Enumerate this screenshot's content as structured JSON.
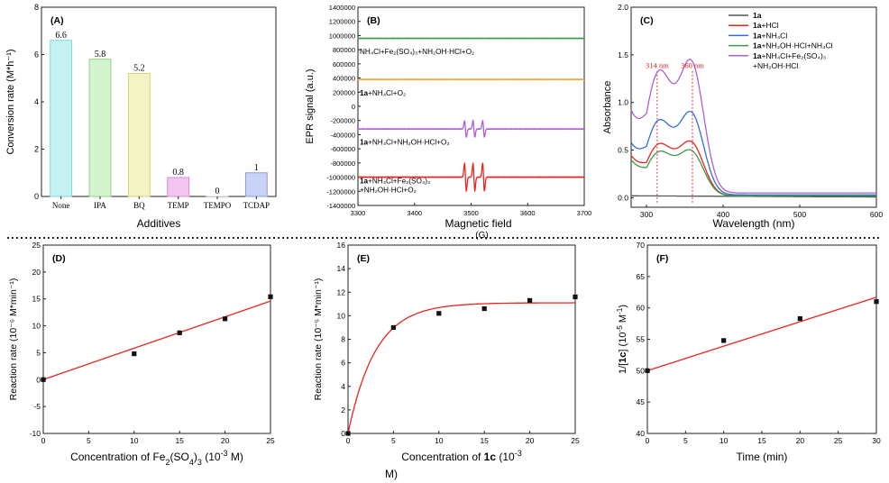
{
  "colors": {
    "black": "#111111",
    "gray": "#555555",
    "red": "#e8251f",
    "blue": "#2f6fd6",
    "green": "#3a9a4a",
    "purple": "#b05fd6",
    "orange": "#f5a340",
    "dashed_red": "#e03030"
  },
  "divider": "dotted",
  "chart_data": [
    {
      "id": "A",
      "panel_label": "(A)",
      "type": "bar",
      "categories": [
        "None",
        "IPA",
        "BQ",
        "TEMP",
        "TEMPO",
        "TCDAP"
      ],
      "values": [
        6.6,
        5.8,
        5.2,
        0.8,
        0,
        1
      ],
      "value_labels": [
        "6.6",
        "5.8",
        "5.2",
        "0.8",
        "0",
        "1"
      ],
      "bar_colors": [
        "#c5f3f3",
        "#d3f5cd",
        "#f4f3c3",
        "#f3c6f0",
        "#f4f4f4",
        "#c9d3f6"
      ],
      "bar_edges": [
        "#7fd7d7",
        "#8fd680",
        "#d8d27a",
        "#d88ad3",
        "#cccccc",
        "#8a9bd8"
      ],
      "xlabel": "Additives",
      "ylabel": "Conversion rate (M*h⁻¹)",
      "ylim": [
        0,
        8
      ],
      "yticks": [
        0,
        2,
        4,
        6,
        8
      ],
      "ytick_labels": [
        "0",
        "2",
        "4",
        "6",
        "8"
      ],
      "grid": false
    },
    {
      "id": "B",
      "panel_label": "(B)",
      "type": "line",
      "xlabel": "Magnetic field",
      "xlabel_extra": "(G)",
      "ylabel": "EPR signal (a.u.)",
      "xlim": [
        3300,
        3700
      ],
      "ylim": [
        -1400000,
        1400000
      ],
      "xticks": [
        3300,
        3400,
        3500,
        3600,
        3700
      ],
      "xtick_labels": [
        "3300",
        "3400",
        "3500",
        "3600",
        "3700"
      ],
      "yticks": [
        -1400000,
        -1200000,
        -1000000,
        -800000,
        -600000,
        -400000,
        -200000,
        0,
        200000,
        400000,
        600000,
        800000,
        1000000,
        1200000,
        1400000
      ],
      "ytick_labels": [
        "-1400000",
        "-1200000",
        "-1000000",
        "-800000",
        "-600000",
        "-400000",
        "-200000",
        "0",
        "200000",
        "400000",
        "600000",
        "800000",
        "1000000",
        "1200000",
        "1400000"
      ],
      "series": [
        {
          "baseline": 960000,
          "color": "#3a9a4a",
          "peaks": []
        },
        {
          "baseline": 380000,
          "color": "#f5a340",
          "peaks": []
        },
        {
          "baseline": -320000,
          "color": "#b05fd6",
          "peaks": [
            3490,
            3505,
            3522
          ],
          "amplitude": 120000
        },
        {
          "baseline": -1000000,
          "color": "#e8251f",
          "peaks": [
            3490,
            3505,
            3522
          ],
          "amplitude": 200000
        }
      ],
      "annotations": [
        {
          "lines": [
            "NH₄Cl+Fe₂(SO₄)₃+NH₂OH·HCl+O₂"
          ],
          "bold_prefix": "",
          "x": 3300,
          "y": 740000
        },
        {
          "lines": [
            "+NH₄Cl+O₂"
          ],
          "bold_prefix": "1a",
          "x": 3300,
          "y": 150000
        },
        {
          "lines": [
            "+NH₄Cl+NH₂OH·HCl+O₂"
          ],
          "bold_prefix": "1a",
          "x": 3300,
          "y": -540000
        },
        {
          "lines": [
            "+NH₄Cl+Fe₂(SO₄)₃",
            "+NH₂OH·HCl+O₂"
          ],
          "bold_prefix": "1a",
          "x": 3300,
          "y": -1090000
        }
      ]
    },
    {
      "id": "C",
      "panel_label": "(C)",
      "type": "line",
      "xlabel": "Wavelength (nm)",
      "ylabel": "Absorbance",
      "xlim": [
        280,
        600
      ],
      "ylim": [
        -0.1,
        2.0
      ],
      "xticks": [
        300,
        400,
        500,
        600
      ],
      "xtick_labels": [
        "300",
        "400",
        "500",
        "600"
      ],
      "yticks": [
        0.0,
        0.5,
        1.0,
        1.5,
        2.0
      ],
      "ytick_labels": [
        "0.0",
        "0.5",
        "1.0",
        "1.5",
        "2.0"
      ],
      "peak_markers": [
        {
          "x": 314,
          "label": "314 nm"
        },
        {
          "x": 360,
          "label": "360 nm"
        }
      ],
      "legend_position": "top-right",
      "series": [
        {
          "legend_bold": "1a",
          "legend_rest": "",
          "legend_line2": "",
          "color": "#555555",
          "p1": 0.0,
          "p2": 0.0,
          "base": 0.02,
          "tail": 0.01
        },
        {
          "legend_bold": "1a",
          "legend_rest": "+HCl",
          "legend_line2": "",
          "color": "#e8251f",
          "p1": 0.44,
          "p2": 0.46,
          "base": 0.3,
          "tail": 0.02
        },
        {
          "legend_bold": "1a",
          "legend_rest": "+NH₄Cl",
          "legend_line2": "",
          "color": "#2f6fd6",
          "p1": 0.65,
          "p2": 0.73,
          "base": 0.38,
          "tail": 0.03
        },
        {
          "legend_bold": "1a",
          "legend_rest": "+NH₂OH·HCl+NH₄Cl",
          "legend_line2": "",
          "color": "#3a9a4a",
          "p1": 0.37,
          "p2": 0.38,
          "base": 0.27,
          "tail": 0.02
        },
        {
          "legend_bold": "1a",
          "legend_rest": "+NH₄Cl+Fe₂(SO₄)₃",
          "legend_line2": "+NH₂OH·HCl",
          "color": "#b05fd6",
          "p1": 1.07,
          "p2": 1.17,
          "base": 0.6,
          "tail": 0.05
        }
      ]
    },
    {
      "id": "D",
      "panel_label": "(D)",
      "type": "scatter",
      "xlabel_parts": [
        "Concentration of Fe",
        "2",
        "(SO",
        "4",
        ")",
        "3",
        " (10",
        "-3",
        " M)"
      ],
      "ylabel": "Reaction rate (10⁻⁵ M*min⁻¹)",
      "xlim": [
        0,
        25
      ],
      "ylim": [
        -10,
        25
      ],
      "xticks": [
        0,
        5,
        10,
        15,
        20,
        25
      ],
      "xtick_labels": [
        "0",
        "5",
        "10",
        "15",
        "20",
        "25"
      ],
      "yticks": [
        -10,
        -5,
        0,
        5,
        10,
        15,
        20,
        25
      ],
      "ytick_labels": [
        "-10",
        "-5",
        "0",
        "5",
        "10",
        "15",
        "20",
        "25"
      ],
      "points": [
        [
          0,
          0
        ],
        [
          10,
          4.8
        ],
        [
          15,
          8.7
        ],
        [
          20,
          11.3
        ],
        [
          25,
          15.4
        ]
      ],
      "fit_line": [
        [
          0,
          0
        ],
        [
          25,
          14.6
        ]
      ],
      "fit_color": "#e8251f"
    },
    {
      "id": "E",
      "panel_label": "(E)",
      "type": "scatter",
      "xlabel_line1": "Concentration of ",
      "xlabel_bold": "1c",
      "xlabel_line1_rest": " (10",
      "xlabel_sup": "-3",
      "xlabel_line2": "M)",
      "ylabel": "Reaction rate (10⁻⁵ M*min⁻¹)",
      "xlim": [
        0,
        25
      ],
      "ylim": [
        0,
        16
      ],
      "xticks": [
        0,
        5,
        10,
        15,
        20,
        25
      ],
      "xtick_labels": [
        "0",
        "5",
        "10",
        "15",
        "20",
        "25"
      ],
      "yticks": [
        0,
        2,
        4,
        6,
        8,
        10,
        12,
        14,
        16
      ],
      "ytick_labels": [
        "0",
        "2",
        "4",
        "6",
        "8",
        "10",
        "12",
        "14",
        "16"
      ],
      "points": [
        [
          0,
          0
        ],
        [
          5,
          9.0
        ],
        [
          10,
          10.2
        ],
        [
          15,
          10.6
        ],
        [
          20,
          11.3
        ],
        [
          25,
          11.6
        ]
      ],
      "fit_curve": {
        "a": 11.1,
        "k": 0.33
      },
      "fit_color": "#e8251f"
    },
    {
      "id": "F",
      "panel_label": "(F)",
      "type": "scatter",
      "xlabel": "Time (min)",
      "ylabel_parts": [
        "1/[",
        "1c",
        "] (10",
        "-5",
        " M",
        "-1",
        ")"
      ],
      "xlim": [
        0,
        30
      ],
      "ylim": [
        40,
        70
      ],
      "xticks": [
        0,
        5,
        10,
        15,
        20,
        25,
        30
      ],
      "xtick_labels": [
        "0",
        "5",
        "10",
        "15",
        "20",
        "25",
        "30"
      ],
      "yticks": [
        40,
        45,
        50,
        55,
        60,
        65,
        70
      ],
      "ytick_labels": [
        "40",
        "45",
        "50",
        "55",
        "60",
        "65",
        "70"
      ],
      "points": [
        [
          0,
          50.0
        ],
        [
          10,
          54.8
        ],
        [
          20,
          58.3
        ],
        [
          30,
          61.0
        ]
      ],
      "fit_line": [
        [
          0,
          50.0
        ],
        [
          30,
          61.7
        ]
      ],
      "fit_color": "#e8251f"
    }
  ]
}
